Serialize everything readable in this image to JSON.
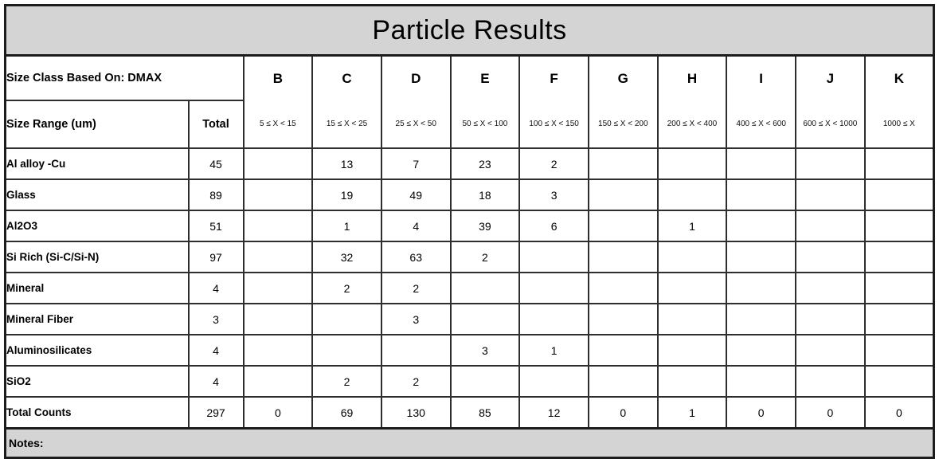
{
  "title": "Particle Results",
  "header": {
    "size_class_label": "Size Class Based On: DMAX",
    "size_range_label": "Size Range (um)",
    "total_label": "Total",
    "columns": [
      {
        "letter": "B",
        "range": "5 ≤ X < 15"
      },
      {
        "letter": "C",
        "range": "15 ≤ X < 25"
      },
      {
        "letter": "D",
        "range": "25 ≤ X < 50"
      },
      {
        "letter": "E",
        "range": "50 ≤ X < 100"
      },
      {
        "letter": "F",
        "range": "100 ≤ X < 150"
      },
      {
        "letter": "G",
        "range": "150 ≤ X < 200"
      },
      {
        "letter": "H",
        "range": "200 ≤ X < 400"
      },
      {
        "letter": "I",
        "range": "400 ≤ X < 600"
      },
      {
        "letter": "J",
        "range": "600 ≤ X < 1000"
      },
      {
        "letter": "K",
        "range": "1000 ≤ X"
      }
    ]
  },
  "rows": [
    {
      "label": "Al alloy -Cu",
      "total": "45",
      "values": [
        "",
        "13",
        "7",
        "23",
        "2",
        "",
        "",
        "",
        "",
        ""
      ]
    },
    {
      "label": "Glass",
      "total": "89",
      "values": [
        "",
        "19",
        "49",
        "18",
        "3",
        "",
        "",
        "",
        "",
        ""
      ]
    },
    {
      "label": "Al2O3",
      "total": "51",
      "values": [
        "",
        "1",
        "4",
        "39",
        "6",
        "",
        "1",
        "",
        "",
        ""
      ]
    },
    {
      "label": "Si Rich (Si-C/Si-N)",
      "total": "97",
      "values": [
        "",
        "32",
        "63",
        "2",
        "",
        "",
        "",
        "",
        "",
        ""
      ]
    },
    {
      "label": "Mineral",
      "total": "4",
      "values": [
        "",
        "2",
        "2",
        "",
        "",
        "",
        "",
        "",
        "",
        ""
      ]
    },
    {
      "label": "Mineral Fiber",
      "total": "3",
      "values": [
        "",
        "",
        "3",
        "",
        "",
        "",
        "",
        "",
        "",
        ""
      ]
    },
    {
      "label": "Aluminosilicates",
      "total": "4",
      "values": [
        "",
        "",
        "",
        "3",
        "1",
        "",
        "",
        "",
        "",
        ""
      ]
    },
    {
      "label": "SiO2",
      "total": "4",
      "values": [
        "",
        "2",
        "2",
        "",
        "",
        "",
        "",
        "",
        "",
        ""
      ]
    },
    {
      "label": "Total Counts",
      "total": "297",
      "values": [
        "0",
        "69",
        "130",
        "85",
        "12",
        "0",
        "1",
        "0",
        "0",
        "0"
      ]
    }
  ],
  "notes_label": "Notes:",
  "colors": {
    "band_gray": "#d4d4d4",
    "grid_line": "#2e2e2e",
    "outer_border": "#1c1c1c"
  }
}
